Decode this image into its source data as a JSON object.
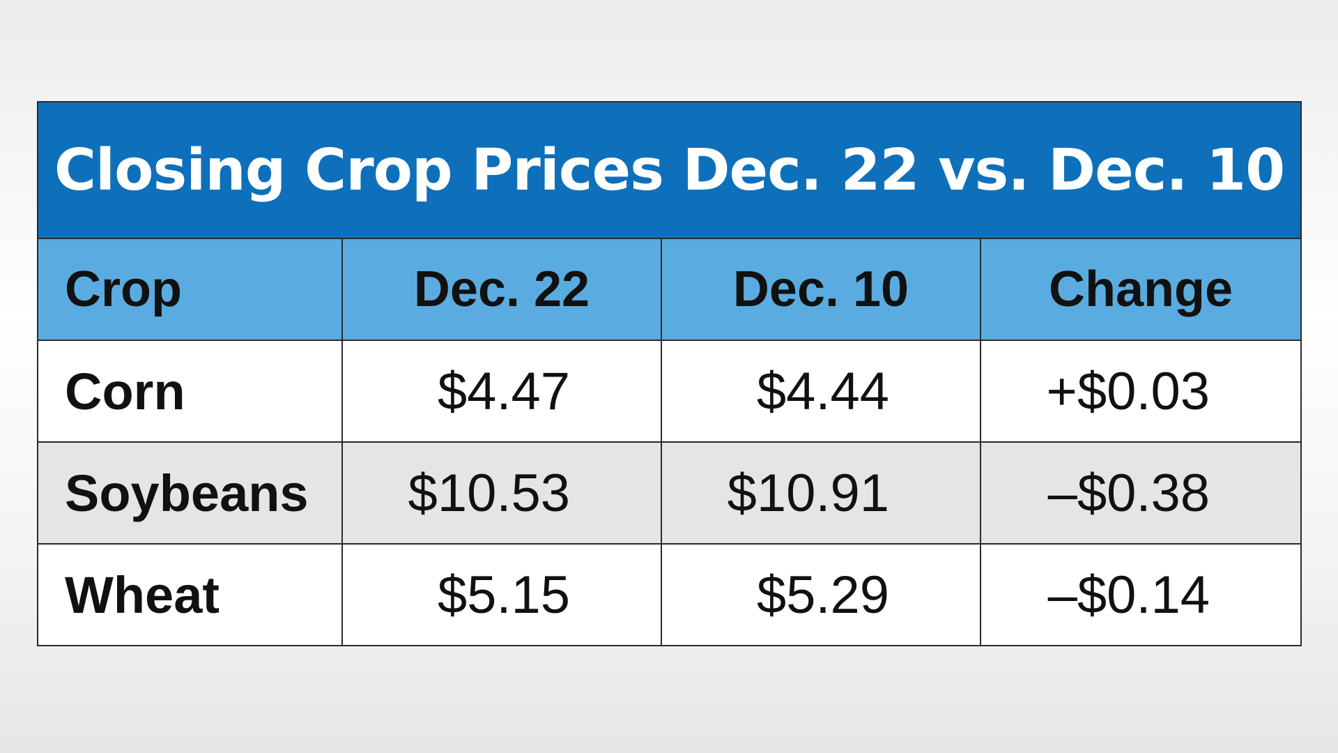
{
  "chart_data": {
    "type": "table",
    "title": "Closing Crop Prices Dec. 22 vs. Dec. 10",
    "columns": [
      "Crop",
      "Dec. 22",
      "Dec. 10",
      "Change"
    ],
    "rows": [
      {
        "crop": "Corn",
        "dec22": "$4.47",
        "dec10": "$4.44",
        "change": "+$0.03"
      },
      {
        "crop": "Soybeans",
        "dec22": "$10.53",
        "dec10": "$10.91",
        "change": "–$0.38"
      },
      {
        "crop": "Wheat",
        "dec22": "$5.15",
        "dec10": "$5.29",
        "change": "–$0.14"
      }
    ]
  },
  "colors": {
    "title_bg": "#0e70bb",
    "header_bg": "#5aace0",
    "row_alt_bg": "#e5e5e5",
    "row_bg": "#ffffff"
  }
}
